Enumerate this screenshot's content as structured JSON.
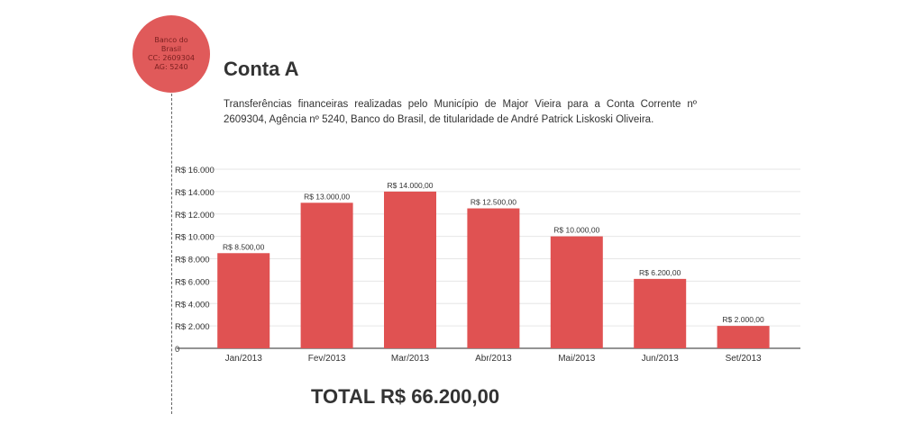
{
  "badge": {
    "line1": "Banco do Brasil",
    "line2": "CC: 2609304",
    "line3": "AG: 5240"
  },
  "title": "Conta A",
  "description": "Transferências financeiras realizadas pelo Município de Major Vieira para a Conta Corrente nº 2609304, Agência nº 5240, Banco do Brasil, de titularidade de André Patrick Liskoski Oliveira.",
  "total": "TOTAL R$ 66.200,00",
  "colors": {
    "bar": "#e05252",
    "badge": "#e05a5a",
    "grid": "#e6e6e6"
  },
  "chart_data": {
    "type": "bar",
    "categories": [
      "Jan/2013",
      "Fev/2013",
      "Mar/2013",
      "Abr/2013",
      "Mai/2013",
      "Jun/2013",
      "Set/2013"
    ],
    "values": [
      8500,
      13000,
      14000,
      12500,
      10000,
      6200,
      2000
    ],
    "data_labels": [
      "R$ 8.500,00",
      "R$ 13.000,00",
      "R$ 14.000,00",
      "R$ 12.500,00",
      "R$ 10.000,00",
      "R$ 6.200,00",
      "R$ 2.000,00"
    ],
    "y_ticks": [
      0,
      2000,
      4000,
      6000,
      8000,
      10000,
      12000,
      14000,
      16000
    ],
    "y_tick_labels": [
      "0",
      "R$ 2.000",
      "R$ 4.000",
      "R$ 6.000",
      "R$ 8.000",
      "R$ 10.000",
      "R$ 12.000",
      "R$ 14.000",
      "R$ 16.000"
    ],
    "ylim": [
      0,
      16000
    ],
    "grid": true
  }
}
